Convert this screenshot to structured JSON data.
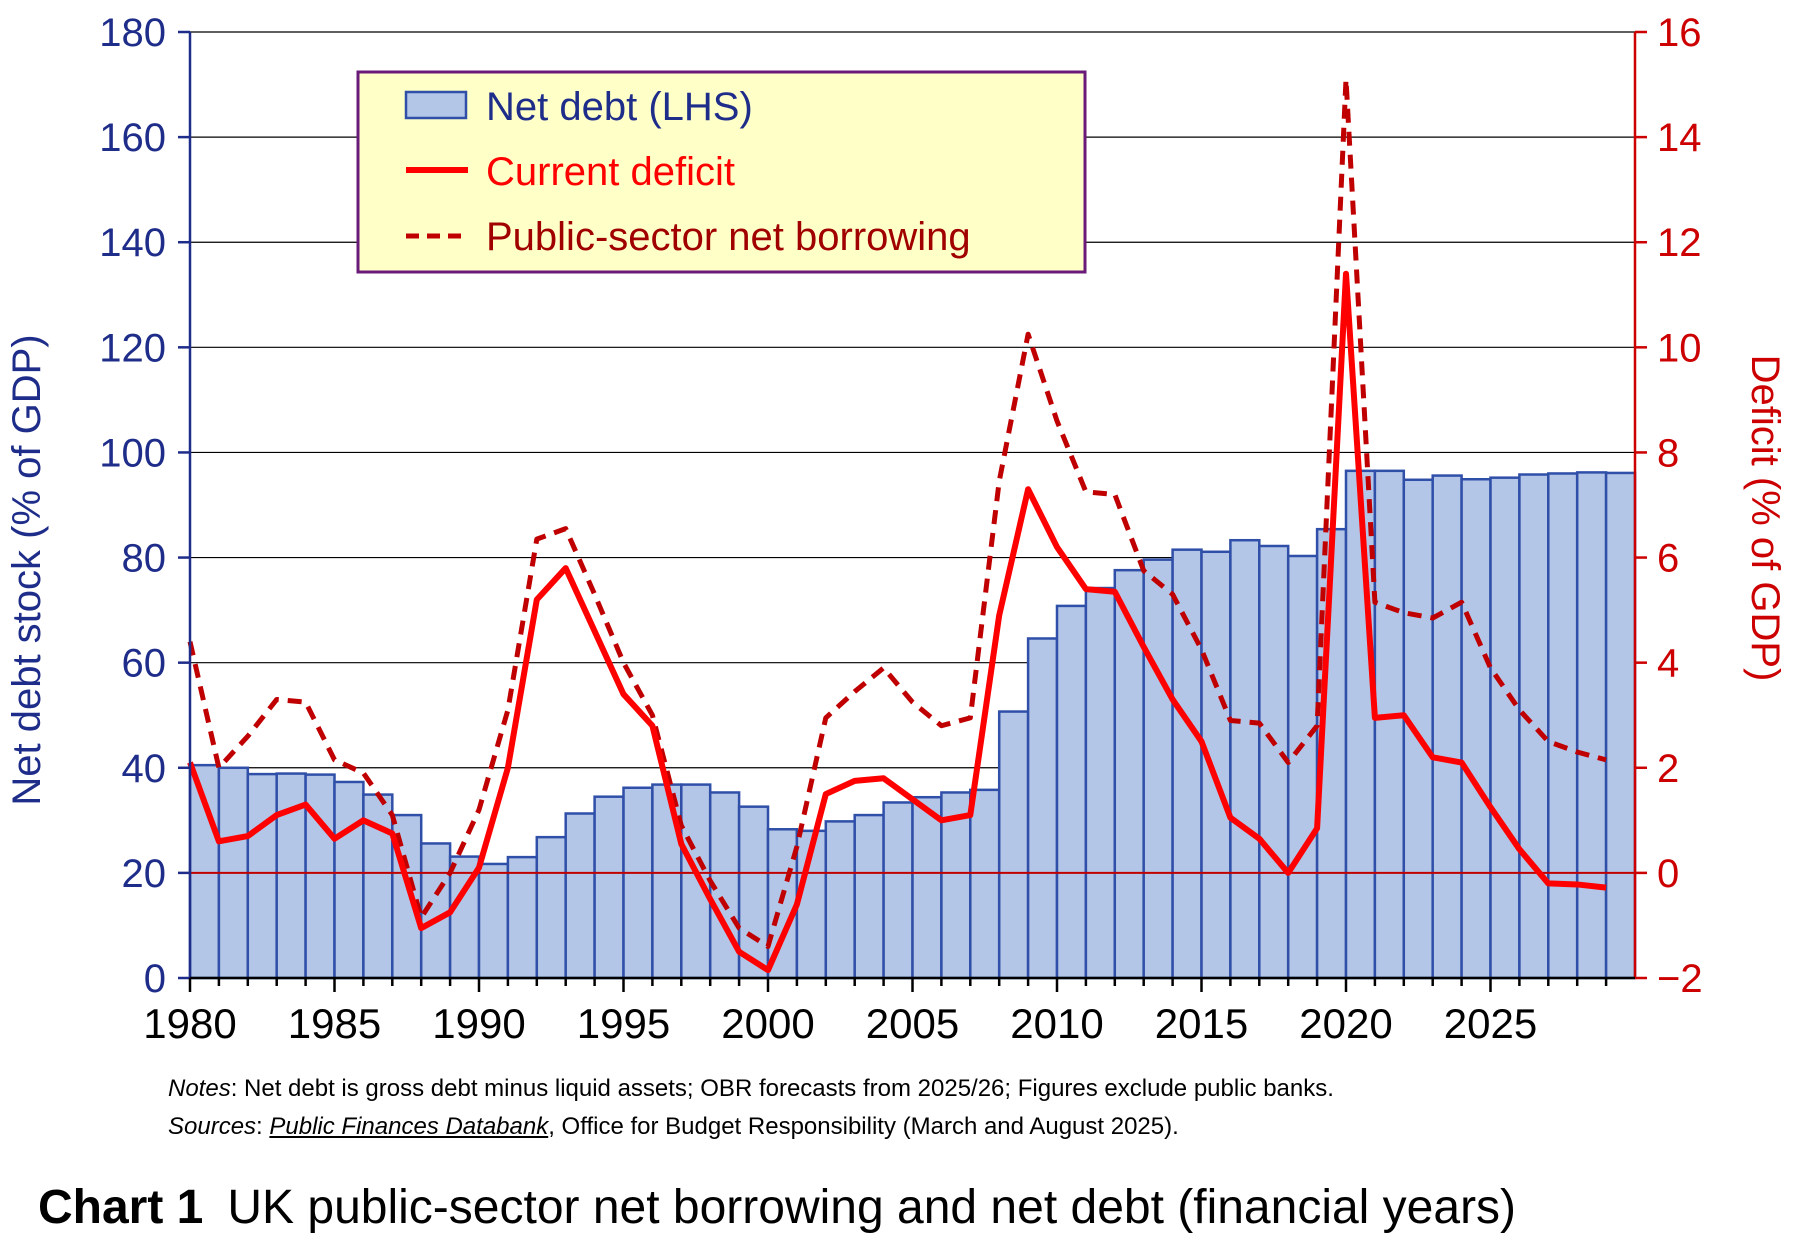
{
  "chart_data": {
    "type": "bar+line",
    "title": "UK public-sector net borrowing and net debt (financial years)",
    "chart_number": "Chart 1",
    "x": [
      1980,
      1981,
      1982,
      1983,
      1984,
      1985,
      1986,
      1987,
      1988,
      1989,
      1990,
      1991,
      1992,
      1993,
      1994,
      1995,
      1996,
      1997,
      1998,
      1999,
      2000,
      2001,
      2002,
      2003,
      2004,
      2005,
      2006,
      2007,
      2008,
      2009,
      2010,
      2011,
      2012,
      2013,
      2014,
      2015,
      2016,
      2017,
      2018,
      2019,
      2020,
      2021,
      2022,
      2023,
      2024,
      2025,
      2026,
      2027,
      2028,
      2029
    ],
    "x_ticks": [
      "1980",
      "1985",
      "1990",
      "1995",
      "2000",
      "2005",
      "2010",
      "2015",
      "2020",
      "2025"
    ],
    "left_axis": {
      "label": "Net debt stock (% of GDP)",
      "ylim": [
        0,
        180
      ],
      "ticks": [
        "0",
        "20",
        "40",
        "60",
        "80",
        "100",
        "120",
        "140",
        "160",
        "180"
      ]
    },
    "right_axis": {
      "label": "Deficit (% of GDP)",
      "ylim": [
        -2,
        16
      ],
      "ticks": [
        "−2",
        "0",
        "2",
        "4",
        "6",
        "8",
        "10",
        "12",
        "14",
        "16"
      ]
    },
    "series": [
      {
        "name": "Net debt (LHS)",
        "type": "bar",
        "axis": "left",
        "color": "#b4c6e7",
        "edge_color": "#2f4fa8",
        "values": [
          40.5,
          40,
          38.8,
          38.9,
          38.7,
          37.3,
          34.9,
          31,
          25.6,
          23.1,
          21.7,
          23,
          26.8,
          31.3,
          34.5,
          36.2,
          36.8,
          36.8,
          35.3,
          32.6,
          28.3,
          28,
          29.8,
          31,
          33.4,
          34.4,
          35.3,
          35.8,
          50.7,
          64.6,
          70.8,
          74.2,
          77.6,
          79.6,
          81.5,
          81.1,
          83.3,
          82.2,
          80.3,
          85.4,
          96.5,
          96.5,
          94.8,
          95.6,
          94.9,
          95.2,
          95.8,
          96,
          96.2,
          96.1
        ]
      },
      {
        "name": "Current deficit",
        "type": "line",
        "axis": "right",
        "color": "#ff0000",
        "dash": "solid",
        "values": [
          2.1,
          0.6,
          0.7,
          1.1,
          1.3,
          0.65,
          1.0,
          0.75,
          -1.05,
          -0.75,
          0.1,
          2.0,
          5.2,
          5.8,
          4.6,
          3.4,
          2.8,
          0.55,
          -0.5,
          -1.5,
          -1.85,
          -0.6,
          1.5,
          1.75,
          1.8,
          1.4,
          1.0,
          1.1,
          4.9,
          7.3,
          6.2,
          5.4,
          5.35,
          4.3,
          3.3,
          2.5,
          1.05,
          0.65,
          0.0,
          0.85,
          11.4,
          2.95,
          3.0,
          2.2,
          2.1,
          1.25,
          0.45,
          -0.2,
          -0.22,
          -0.28
        ]
      },
      {
        "name": "Public-sector net borrowing",
        "type": "line",
        "axis": "right",
        "color": "#c00000",
        "dash": "dashed",
        "values": [
          4.4,
          2.0,
          2.6,
          3.3,
          3.25,
          2.15,
          1.9,
          1.1,
          -0.85,
          0.0,
          1.2,
          3.1,
          6.35,
          6.55,
          5.3,
          4.0,
          3.0,
          0.9,
          -0.15,
          -1.05,
          -1.4,
          0.5,
          2.95,
          3.45,
          3.9,
          3.25,
          2.8,
          2.95,
          7.45,
          10.25,
          8.6,
          7.25,
          7.2,
          5.75,
          5.3,
          4.25,
          2.9,
          2.85,
          2.1,
          2.8,
          15.1,
          5.15,
          4.95,
          4.85,
          5.15,
          3.9,
          3.1,
          2.5,
          2.3,
          2.15
        ]
      }
    ],
    "zero_line_axis": "right",
    "grid": "horizontal",
    "legend_position": "top-left"
  },
  "notes": {
    "notes_label": "Notes",
    "notes_text": ": Net debt is gross debt minus liquid assets; OBR forecasts from 2025/26; Figures exclude public banks.",
    "sources_label": "Sources",
    "sources_sep": ": ",
    "sources_link": "Public Finances Databank",
    "sources_text": ", Office for Budget Responsibility (March and August 2025)."
  },
  "colors": {
    "left_axis": "#1f2d8a",
    "right_axis": "#cc0000",
    "legend_bg": "#ffffc8",
    "legend_border": "#6a1b7a"
  }
}
